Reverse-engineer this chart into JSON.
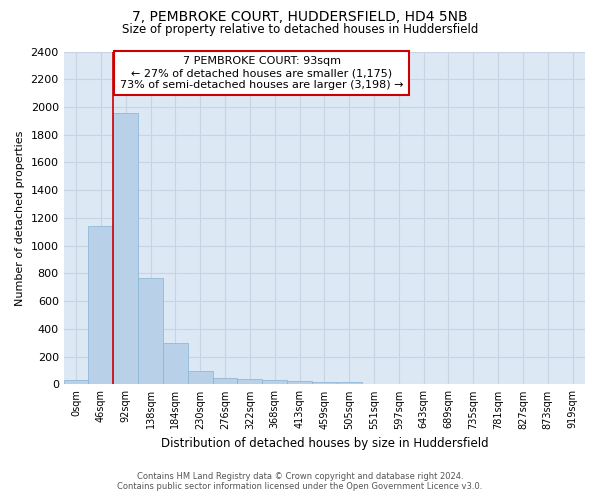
{
  "title": "7, PEMBROKE COURT, HUDDERSFIELD, HD4 5NB",
  "subtitle": "Size of property relative to detached houses in Huddersfield",
  "xlabel": "Distribution of detached houses by size in Huddersfield",
  "ylabel": "Number of detached properties",
  "footer_line1": "Contains HM Land Registry data © Crown copyright and database right 2024.",
  "footer_line2": "Contains public sector information licensed under the Open Government Licence v3.0.",
  "bar_labels": [
    "0sqm",
    "46sqm",
    "92sqm",
    "138sqm",
    "184sqm",
    "230sqm",
    "276sqm",
    "322sqm",
    "368sqm",
    "413sqm",
    "459sqm",
    "505sqm",
    "551sqm",
    "597sqm",
    "643sqm",
    "689sqm",
    "735sqm",
    "781sqm",
    "827sqm",
    "873sqm",
    "919sqm"
  ],
  "bar_values": [
    35,
    1140,
    1960,
    770,
    300,
    100,
    48,
    40,
    35,
    22,
    15,
    15,
    0,
    0,
    0,
    0,
    0,
    0,
    0,
    0,
    0
  ],
  "bar_color": "#b8d0e8",
  "bar_edge_color": "#88b4d4",
  "grid_color": "#c8d4e4",
  "plot_background": "#dce8f4",
  "figure_background": "#ffffff",
  "property_line_x": 2,
  "annotation_title": "7 PEMBROKE COURT: 93sqm",
  "annotation_line1": "← 27% of detached houses are smaller (1,175)",
  "annotation_line2": "73% of semi-detached houses are larger (3,198) →",
  "annotation_box_color": "#cc0000",
  "ylim": [
    0,
    2400
  ],
  "yticks": [
    0,
    200,
    400,
    600,
    800,
    1000,
    1200,
    1400,
    1600,
    1800,
    2000,
    2200,
    2400
  ]
}
